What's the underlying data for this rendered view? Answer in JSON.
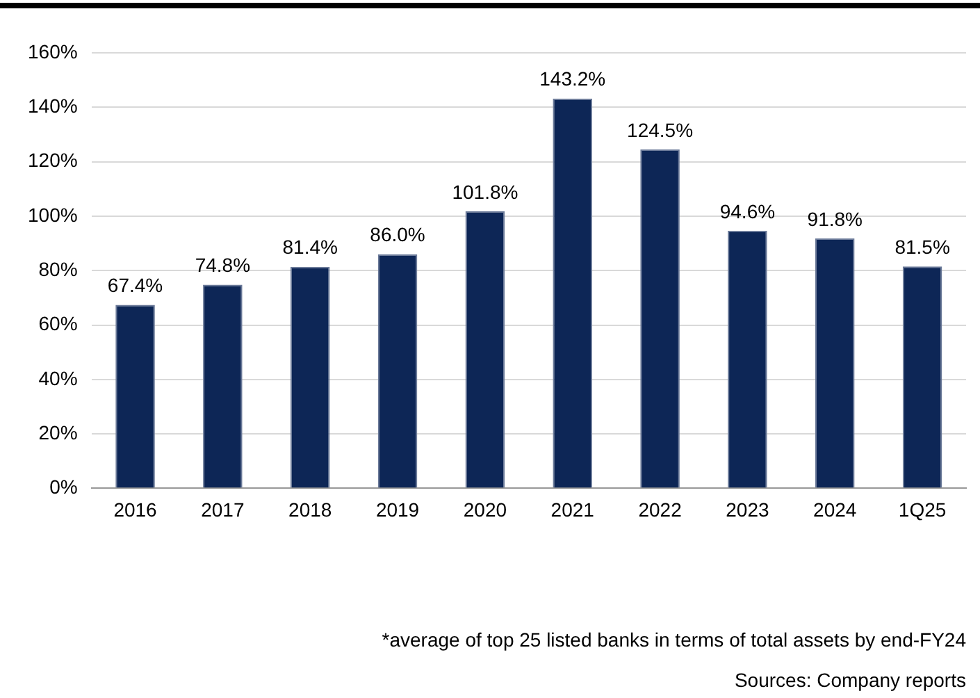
{
  "chart_data": {
    "type": "bar",
    "categories": [
      "2016",
      "2017",
      "2018",
      "2019",
      "2020",
      "2021",
      "2022",
      "2023",
      "2024",
      "1Q25"
    ],
    "values": [
      67.4,
      74.8,
      81.4,
      86.0,
      101.8,
      143.2,
      124.5,
      94.6,
      91.8,
      81.5
    ],
    "value_labels": [
      "67.4%",
      "74.8%",
      "81.4%",
      "86.0%",
      "101.8%",
      "143.2%",
      "124.5%",
      "94.6%",
      "91.8%",
      "81.5%"
    ],
    "color": "#0d2656",
    "ylim": [
      0,
      160
    ],
    "yticks": [
      {
        "value": 0,
        "label": "0%"
      },
      {
        "value": 20,
        "label": "20%"
      },
      {
        "value": 40,
        "label": "40%"
      },
      {
        "value": 60,
        "label": "60%"
      },
      {
        "value": 80,
        "label": "80%"
      },
      {
        "value": 100,
        "label": "100%"
      },
      {
        "value": 120,
        "label": "120%"
      },
      {
        "value": 140,
        "label": "140%"
      },
      {
        "value": 160,
        "label": "160%"
      }
    ],
    "grid": "y",
    "annotations": [
      "*average of top 25 listed banks in terms of total assets by end-FY24",
      "Sources: Company reports"
    ]
  }
}
